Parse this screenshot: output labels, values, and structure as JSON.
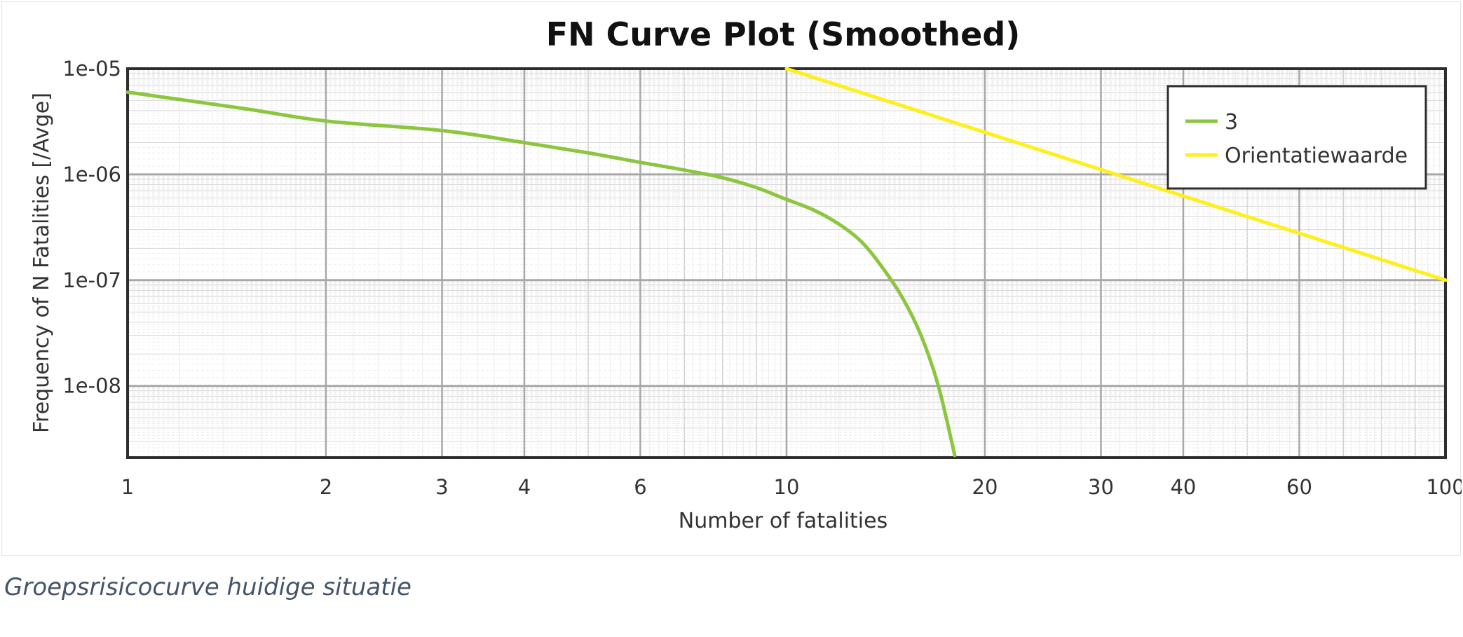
{
  "chart_data": {
    "type": "line",
    "title": "FN Curve Plot (Smoothed)",
    "xlabel": "Number of fatalities",
    "ylabel": "Frequency of N Fatalities [/Avge]",
    "x_scale": "log",
    "y_scale": "log",
    "xlim": [
      1,
      100
    ],
    "ylim": [
      2.1e-09,
      1e-05
    ],
    "x_ticks": [
      1,
      2,
      3,
      4,
      6,
      10,
      20,
      30,
      40,
      60,
      100
    ],
    "x_tick_labels": [
      "1",
      "2",
      "3",
      "4",
      "6",
      "10",
      "20",
      "30",
      "40",
      "60",
      "100"
    ],
    "y_ticks": [
      1e-05,
      1e-06,
      1e-07,
      1e-08
    ],
    "y_tick_labels": [
      "1e-05",
      "1e-06",
      "1e-07",
      "1e-08"
    ],
    "grid": true,
    "legend_position": "top-right",
    "series": [
      {
        "name": "3",
        "color": "#8cc63f",
        "points": [
          [
            1,
            6e-06
          ],
          [
            1.5,
            4.2e-06
          ],
          [
            2,
            3.2e-06
          ],
          [
            3,
            2.6e-06
          ],
          [
            4,
            2e-06
          ],
          [
            5,
            1.6e-06
          ],
          [
            6,
            1.3e-06
          ],
          [
            7,
            1.1e-06
          ],
          [
            8,
            9.3e-07
          ],
          [
            9,
            7.5e-07
          ],
          [
            10,
            5.8e-07
          ],
          [
            11,
            4.6e-07
          ],
          [
            12,
            3.4e-07
          ],
          [
            13,
            2.3e-07
          ],
          [
            14,
            1.3e-07
          ],
          [
            15,
            6.8e-08
          ],
          [
            16,
            3e-08
          ],
          [
            17,
            1e-08
          ],
          [
            18,
            2.2e-09
          ]
        ]
      },
      {
        "name": "Orientatiewaarde",
        "color": "#ffef1a",
        "points": [
          [
            10,
            1e-05
          ],
          [
            100,
            1e-07
          ]
        ]
      }
    ]
  },
  "caption": "Groepsrisicocurve huidige situatie"
}
